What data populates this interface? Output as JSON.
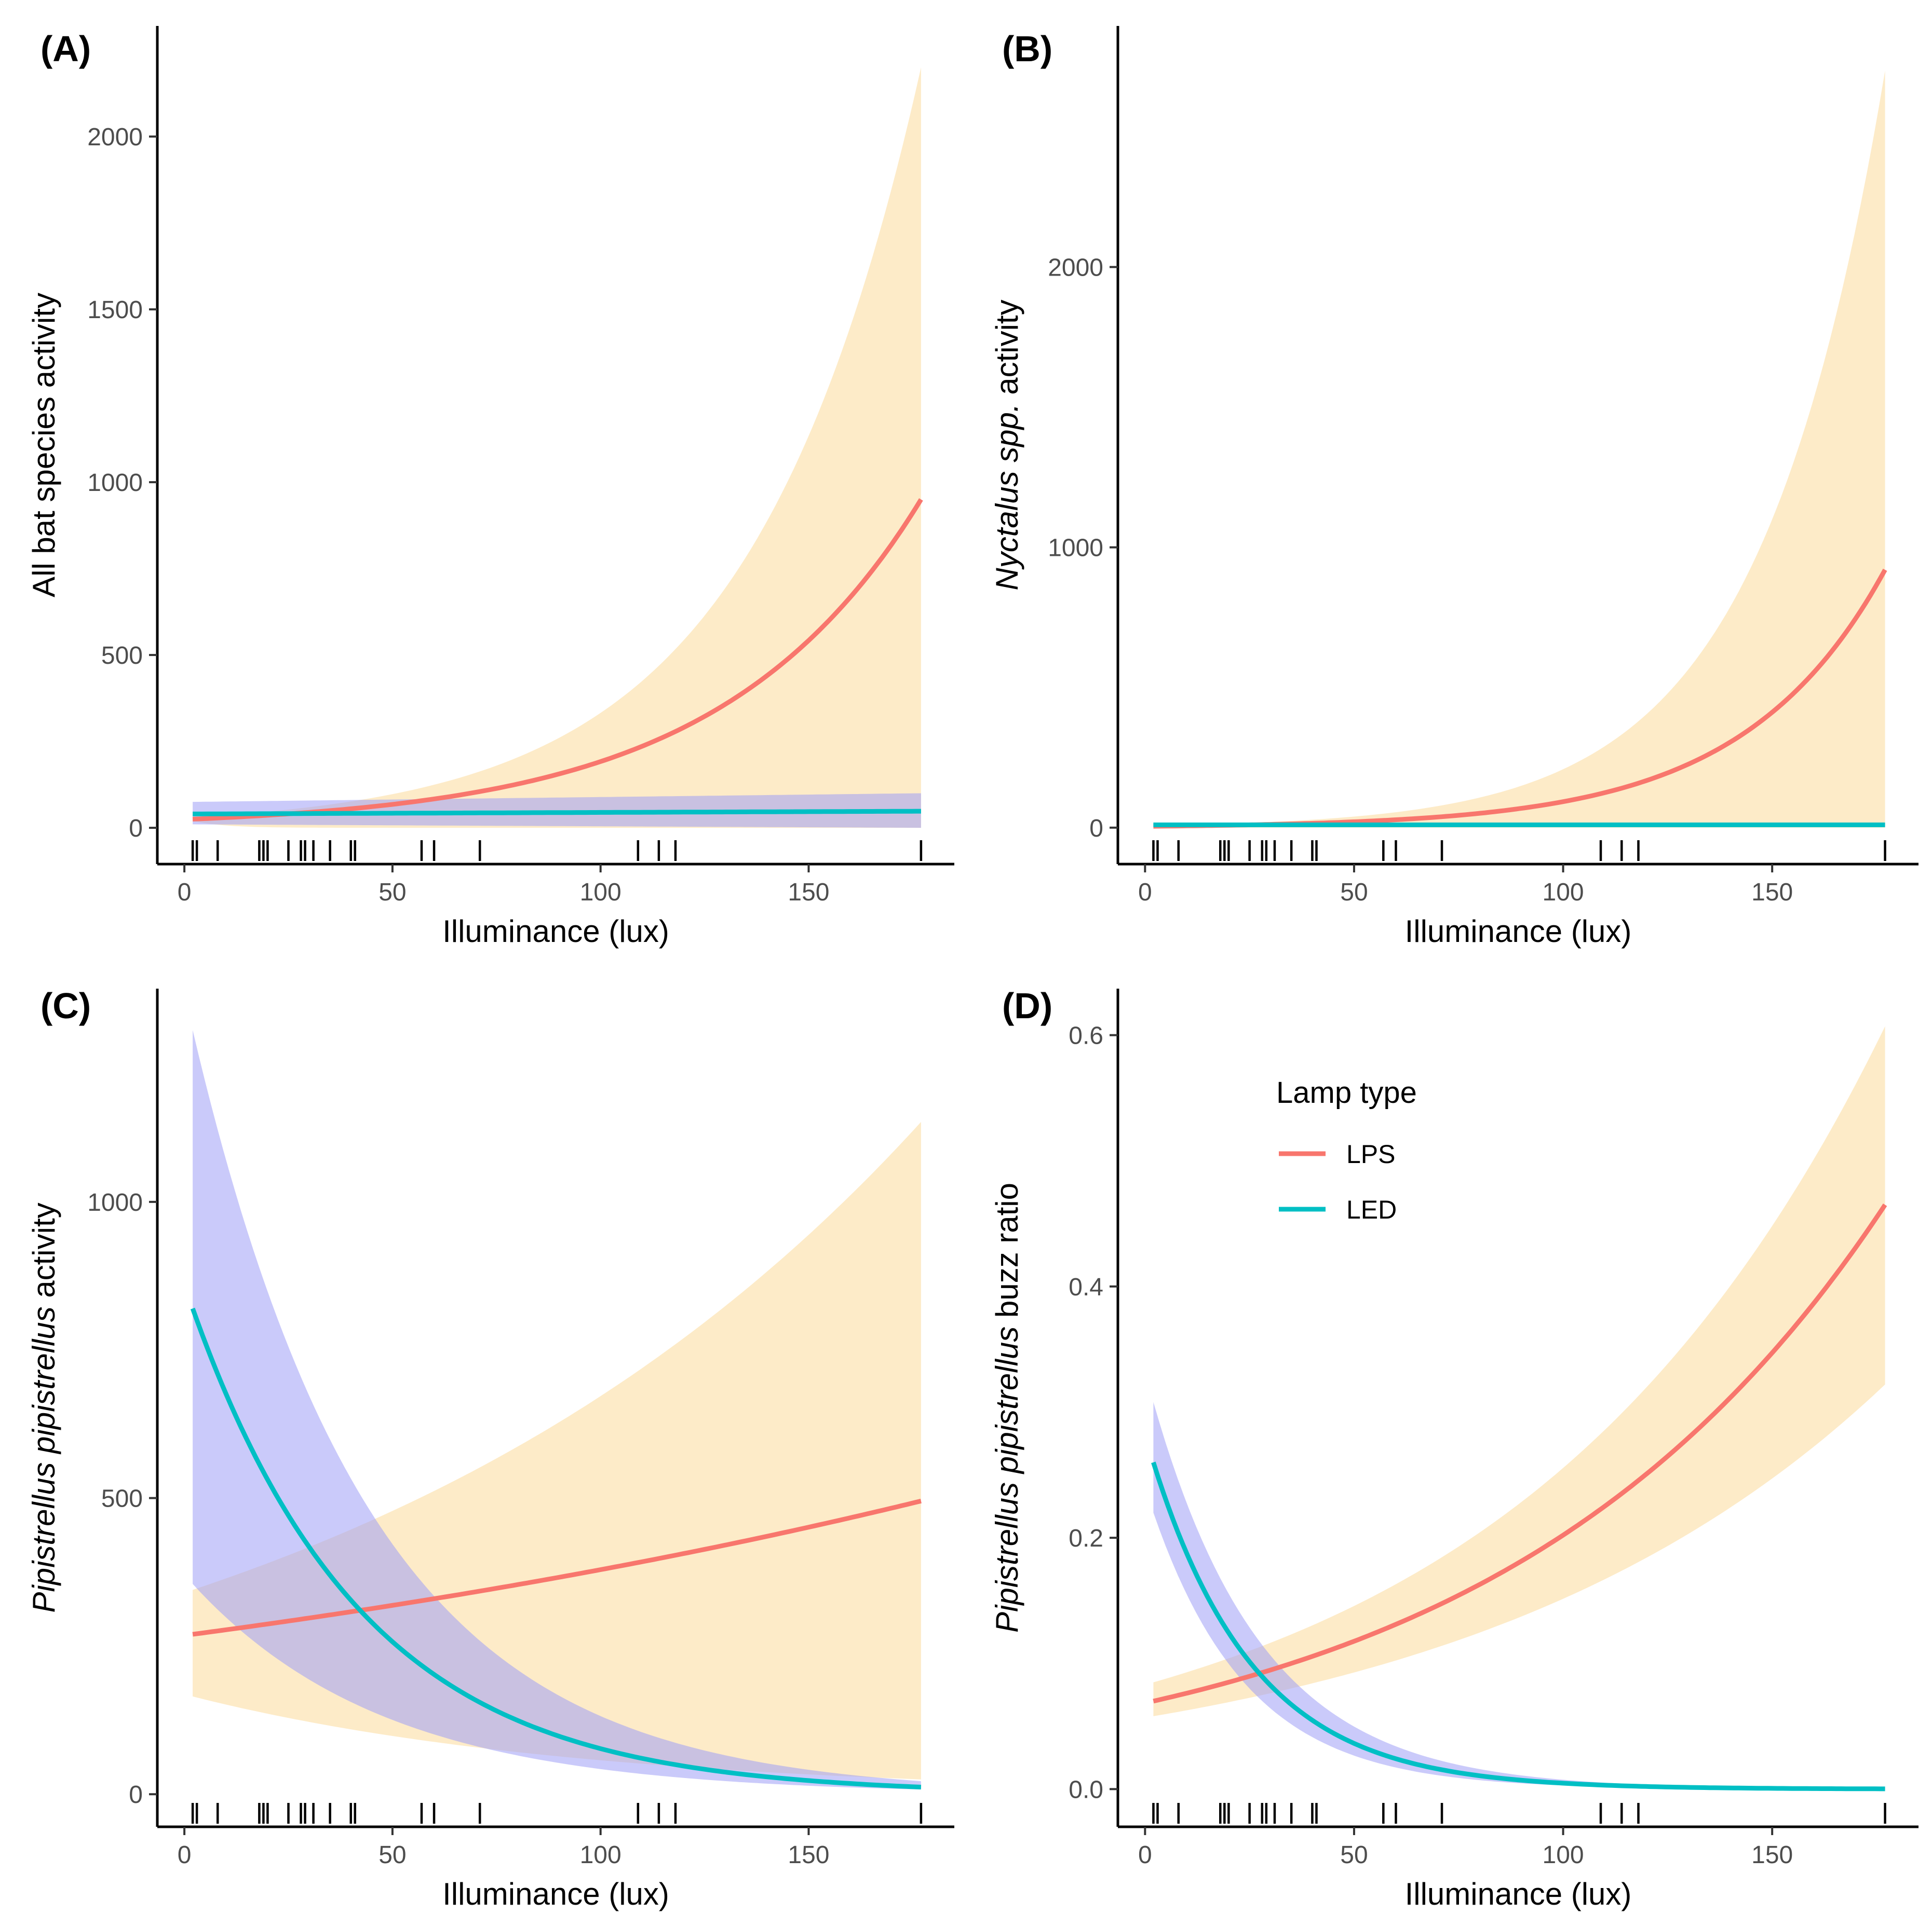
{
  "colors": {
    "LPS": "#F8766D",
    "LED": "#00BFC4",
    "LPS_ribbon": "#FDEBC8",
    "LED_ribbon": "#C8C8FA"
  },
  "legend": {
    "title": "Lamp type",
    "items": [
      {
        "label": "LPS",
        "key": "LPS"
      },
      {
        "label": "LED",
        "key": "LED"
      }
    ]
  },
  "chart_data": [
    {
      "id": "A",
      "panel_label": "(A)",
      "type": "line",
      "xlabel": "Illuminance (lux)",
      "ylabel": "All bat species activity",
      "ylabel_italic": "",
      "ylabel_plain": "All bat species activity",
      "xlim": [
        -6.5,
        185
      ],
      "ylim": [
        -105,
        2320
      ],
      "xticks": [
        0,
        50,
        100,
        150
      ],
      "xtick_labels": [
        "0",
        "50",
        "100",
        "150"
      ],
      "yticks": [
        0,
        500,
        1000,
        1500,
        2000
      ],
      "ytick_labels": [
        "0",
        "500",
        "1000",
        "1500",
        "2000"
      ],
      "rug_x": [
        2,
        3,
        8,
        18,
        19,
        20,
        25,
        28,
        29,
        31,
        35,
        40,
        41,
        57,
        60,
        71,
        109,
        114,
        118,
        177
      ],
      "series": [
        {
          "name": "LPS",
          "model": "exp",
          "x_start": 2,
          "x_end": 177,
          "fit": [
            25,
            950
          ],
          "lower": [
            20,
            0
          ],
          "upper": [
            30,
            2200
          ]
        },
        {
          "name": "LED",
          "model": "linear",
          "x_start": 2,
          "x_end": 177,
          "fit": [
            40,
            48
          ],
          "lower": [
            10,
            0
          ],
          "upper": [
            75,
            100
          ]
        }
      ]
    },
    {
      "id": "B",
      "panel_label": "(B)",
      "type": "line",
      "xlabel": "Illuminance (lux)",
      "ylabel": "Nyctalus spp. activity",
      "ylabel_italic": "Nyctalus spp.",
      "ylabel_plain": " activity",
      "xlim": [
        -6.5,
        185
      ],
      "ylim": [
        -130,
        2860
      ],
      "xticks": [
        0,
        50,
        100,
        150
      ],
      "xtick_labels": [
        "0",
        "50",
        "100",
        "150"
      ],
      "yticks": [
        0,
        1000,
        2000
      ],
      "ytick_labels": [
        "0",
        "1000",
        "2000"
      ],
      "rug_x": [
        2,
        3,
        8,
        18,
        19,
        20,
        25,
        28,
        29,
        31,
        35,
        40,
        41,
        57,
        60,
        71,
        109,
        114,
        118,
        177
      ],
      "series": [
        {
          "name": "LPS",
          "model": "exp",
          "x_start": 2,
          "x_end": 177,
          "fit": [
            5,
            920
          ],
          "lower": [
            2,
            0
          ],
          "upper": [
            8,
            2700
          ]
        },
        {
          "name": "LED",
          "model": "linear",
          "x_start": 2,
          "x_end": 177,
          "fit": [
            10,
            10
          ],
          "lower": [
            5,
            5
          ],
          "upper": [
            15,
            15
          ]
        }
      ]
    },
    {
      "id": "C",
      "panel_label": "(C)",
      "type": "line",
      "xlabel": "Illuminance (lux)",
      "ylabel": "Pipistrellus pipistrellus activity",
      "ylabel_italic": "Pipistrellus pipistrellus",
      "ylabel_plain": " activity",
      "xlim": [
        -6.5,
        185
      ],
      "ylim": [
        -55,
        1360
      ],
      "xticks": [
        0,
        50,
        100,
        150
      ],
      "xtick_labels": [
        "0",
        "50",
        "100",
        "150"
      ],
      "yticks": [
        0,
        500,
        1000
      ],
      "ytick_labels": [
        "0",
        "500",
        "1000"
      ],
      "rug_x": [
        2,
        3,
        8,
        18,
        19,
        20,
        25,
        28,
        29,
        31,
        35,
        40,
        41,
        57,
        60,
        71,
        109,
        114,
        118,
        177
      ],
      "series": [
        {
          "name": "LPS",
          "model": "exp",
          "x_start": 2,
          "x_end": 177,
          "fit": [
            270,
            495
          ],
          "lower": [
            165,
            25
          ],
          "upper": [
            345,
            1135
          ]
        },
        {
          "name": "LED",
          "model": "exp",
          "x_start": 2,
          "x_end": 177,
          "fit": [
            820,
            12
          ],
          "lower": [
            355,
            8
          ],
          "upper": [
            1290,
            22
          ]
        }
      ]
    },
    {
      "id": "D",
      "panel_label": "(D)",
      "type": "line",
      "xlabel": "Illuminance (lux)",
      "ylabel": "Pipistrellus pipistrellus buzz ratio",
      "ylabel_italic": "Pipistrellus pipistrellus",
      "ylabel_plain": " buzz ratio",
      "xlim": [
        -6.5,
        185
      ],
      "ylim": [
        -0.03,
        0.637
      ],
      "xticks": [
        0,
        50,
        100,
        150
      ],
      "xtick_labels": [
        "0",
        "50",
        "100",
        "150"
      ],
      "yticks": [
        0,
        0.2,
        0.4,
        0.6
      ],
      "ytick_labels": [
        "0.0",
        "0.2",
        "0.4",
        "0.6"
      ],
      "rug_x": [
        2,
        3,
        8,
        18,
        19,
        20,
        25,
        28,
        29,
        31,
        35,
        40,
        41,
        57,
        60,
        71,
        109,
        114,
        118,
        177
      ],
      "series": [
        {
          "name": "LPS",
          "model": "exp",
          "x_start": 2,
          "x_end": 177,
          "fit": [
            0.07,
            0.465
          ],
          "lower": [
            0.058,
            0.322
          ],
          "upper": [
            0.085,
            0.607
          ]
        },
        {
          "name": "LED",
          "model": "exp",
          "x_start": 2,
          "x_end": 177,
          "fit": [
            0.26,
            0.0002
          ],
          "lower": [
            0.22,
            0.0001
          ],
          "upper": [
            0.308,
            0.0004
          ]
        }
      ]
    }
  ]
}
